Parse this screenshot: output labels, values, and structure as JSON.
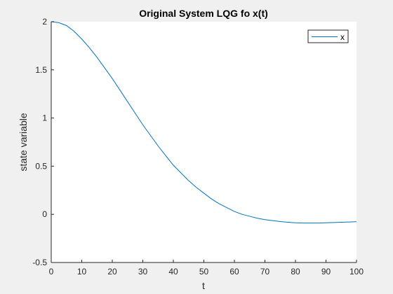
{
  "chart_data": {
    "type": "line",
    "title": "Original System LQG fo x(t)",
    "xlabel": "t",
    "ylabel": "state variable",
    "xlim": [
      0,
      100
    ],
    "ylim": [
      -0.5,
      2
    ],
    "xticks": [
      0,
      10,
      20,
      30,
      40,
      50,
      60,
      70,
      80,
      90,
      100
    ],
    "xtick_labels": [
      "0",
      "10",
      "20",
      "30",
      "40",
      "50",
      "60",
      "70",
      "80",
      "90",
      "100"
    ],
    "yticks": [
      -0.5,
      0,
      0.5,
      1,
      1.5,
      2
    ],
    "ytick_labels": [
      "-0.5",
      "0",
      "0.5",
      "1",
      "1.5",
      "2"
    ],
    "grid": false,
    "legend_position": "top-right",
    "series": [
      {
        "name": "x",
        "color": "#0072bd",
        "x": [
          0,
          2.5,
          5,
          7.5,
          10,
          12.5,
          15,
          17.5,
          20,
          22.5,
          25,
          27.5,
          30,
          32.5,
          35,
          37.5,
          40,
          42.5,
          45,
          47.5,
          50,
          52.5,
          55,
          57.5,
          60,
          62.5,
          65,
          67.5,
          70,
          72.5,
          75,
          77.5,
          80,
          82.5,
          85,
          87.5,
          90,
          92.5,
          95,
          97.5,
          100
        ],
        "y": [
          2.0,
          1.99,
          1.96,
          1.9,
          1.82,
          1.73,
          1.63,
          1.52,
          1.41,
          1.29,
          1.17,
          1.05,
          0.93,
          0.82,
          0.71,
          0.61,
          0.51,
          0.43,
          0.35,
          0.28,
          0.22,
          0.16,
          0.11,
          0.07,
          0.03,
          0.0,
          -0.02,
          -0.04,
          -0.055,
          -0.065,
          -0.075,
          -0.082,
          -0.088,
          -0.09,
          -0.09,
          -0.09,
          -0.088,
          -0.085,
          -0.082,
          -0.079,
          -0.077
        ]
      }
    ]
  }
}
